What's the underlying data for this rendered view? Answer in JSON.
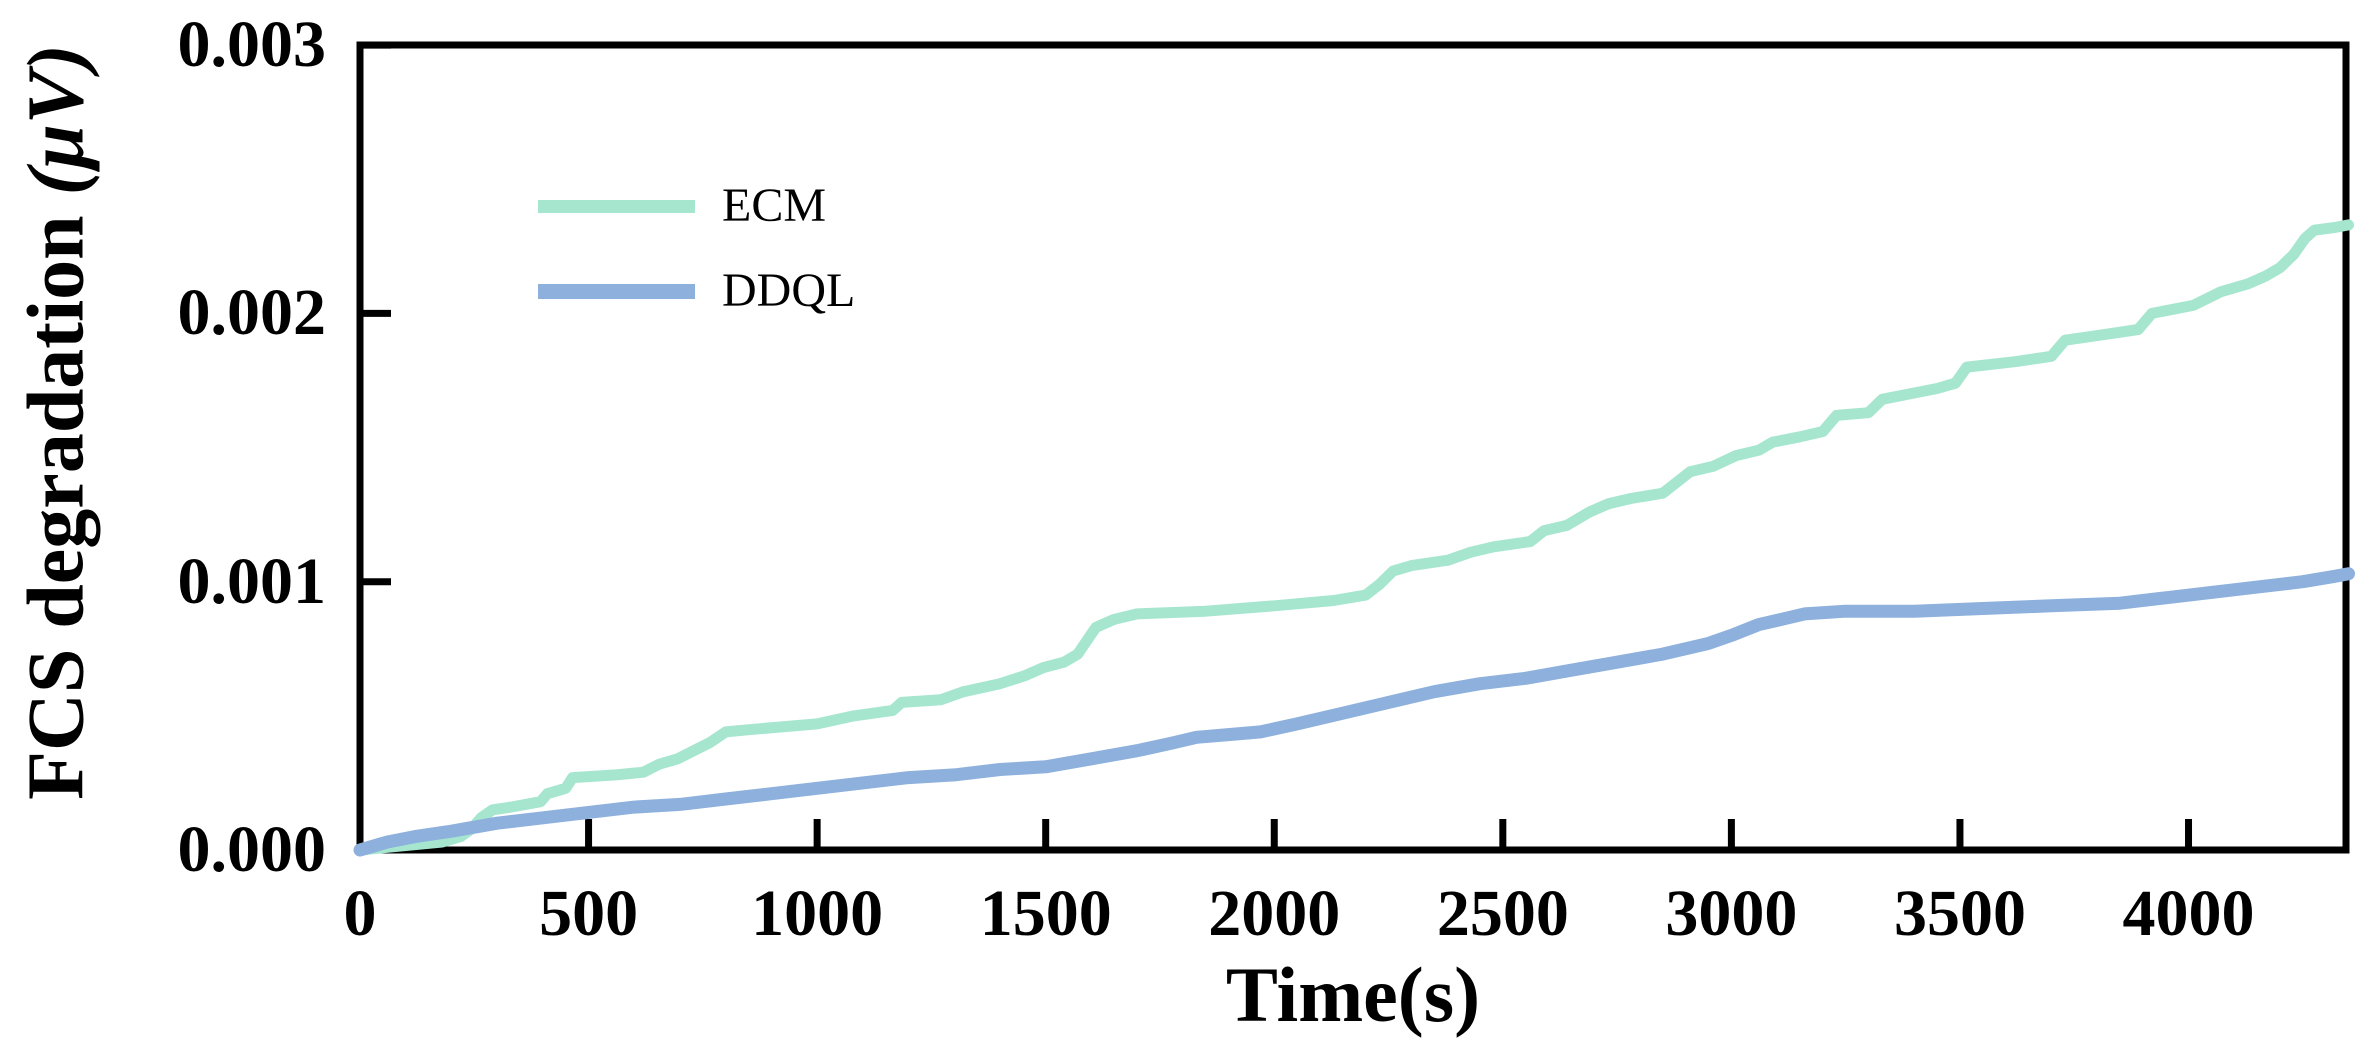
{
  "chart_data": {
    "type": "line",
    "title": "",
    "xlabel": "Time(s)",
    "ylabel_prefix": "FCS degradation ",
    "ylabel_unit": "(μV)",
    "xlim": [
      0,
      4350
    ],
    "ylim": [
      0,
      0.003
    ],
    "grid": false,
    "legend_position": "upper-left-inside",
    "axis_color": "#000000",
    "background_color": "#ffffff",
    "xticks": {
      "values": [
        0,
        500,
        1000,
        1500,
        2000,
        2500,
        3000,
        3500,
        4000
      ],
      "labels": [
        "0",
        "500",
        "1000",
        "1500",
        "2000",
        "2500",
        "3000",
        "3500",
        "4000"
      ]
    },
    "yticks": {
      "values": [
        0,
        0.001,
        0.002,
        0.003
      ],
      "labels": [
        "0.000",
        "0.001",
        "0.002",
        "0.003"
      ]
    },
    "series": [
      {
        "name": "ECM",
        "color": "#a6e6cf",
        "points": [
          [
            0,
            0
          ],
          [
            60,
            1e-05
          ],
          [
            120,
            2e-05
          ],
          [
            180,
            3e-05
          ],
          [
            220,
            5e-05
          ],
          [
            245,
            8e-05
          ],
          [
            265,
            0.00012
          ],
          [
            290,
            0.00015
          ],
          [
            330,
            0.00016
          ],
          [
            395,
            0.00018
          ],
          [
            410,
            0.00021
          ],
          [
            450,
            0.00023
          ],
          [
            465,
            0.00027
          ],
          [
            560,
            0.00028
          ],
          [
            620,
            0.00029
          ],
          [
            655,
            0.00032
          ],
          [
            695,
            0.00034
          ],
          [
            730,
            0.00037
          ],
          [
            765,
            0.0004
          ],
          [
            800,
            0.00044
          ],
          [
            860,
            0.00045
          ],
          [
            1000,
            0.00047
          ],
          [
            1080,
            0.0005
          ],
          [
            1165,
            0.00052
          ],
          [
            1185,
            0.00055
          ],
          [
            1270,
            0.00056
          ],
          [
            1320,
            0.00059
          ],
          [
            1400,
            0.00062
          ],
          [
            1455,
            0.00065
          ],
          [
            1495,
            0.00068
          ],
          [
            1540,
            0.0007
          ],
          [
            1570,
            0.00073
          ],
          [
            1590,
            0.00078
          ],
          [
            1610,
            0.00083
          ],
          [
            1650,
            0.00086
          ],
          [
            1700,
            0.00088
          ],
          [
            1850,
            0.00089
          ],
          [
            2000,
            0.00091
          ],
          [
            2130,
            0.00093
          ],
          [
            2200,
            0.00095
          ],
          [
            2230,
            0.00099
          ],
          [
            2260,
            0.00104
          ],
          [
            2300,
            0.00106
          ],
          [
            2380,
            0.00108
          ],
          [
            2430,
            0.00111
          ],
          [
            2480,
            0.00113
          ],
          [
            2560,
            0.00115
          ],
          [
            2590,
            0.00119
          ],
          [
            2640,
            0.00121
          ],
          [
            2690,
            0.00126
          ],
          [
            2730,
            0.00129
          ],
          [
            2780,
            0.00131
          ],
          [
            2850,
            0.00133
          ],
          [
            2880,
            0.00137
          ],
          [
            2910,
            0.00141
          ],
          [
            2960,
            0.00143
          ],
          [
            3010,
            0.00147
          ],
          [
            3060,
            0.00149
          ],
          [
            3090,
            0.00152
          ],
          [
            3150,
            0.00154
          ],
          [
            3200,
            0.00156
          ],
          [
            3230,
            0.00162
          ],
          [
            3300,
            0.00163
          ],
          [
            3330,
            0.00168
          ],
          [
            3390,
            0.0017
          ],
          [
            3450,
            0.00172
          ],
          [
            3490,
            0.00174
          ],
          [
            3515,
            0.0018
          ],
          [
            3620,
            0.00182
          ],
          [
            3700,
            0.00184
          ],
          [
            3730,
            0.0019
          ],
          [
            3810,
            0.00192
          ],
          [
            3890,
            0.00194
          ],
          [
            3920,
            0.002
          ],
          [
            4010,
            0.00203
          ],
          [
            4070,
            0.00208
          ],
          [
            4130,
            0.00211
          ],
          [
            4170,
            0.00214
          ],
          [
            4200,
            0.00217
          ],
          [
            4230,
            0.00222
          ],
          [
            4255,
            0.00228
          ],
          [
            4275,
            0.00231
          ],
          [
            4320,
            0.00232
          ],
          [
            4350,
            0.00233
          ]
        ]
      },
      {
        "name": "DDQL",
        "color": "#8db0dd",
        "points": [
          [
            0,
            0
          ],
          [
            60,
            3e-05
          ],
          [
            120,
            5e-05
          ],
          [
            200,
            7e-05
          ],
          [
            300,
            0.0001
          ],
          [
            400,
            0.00012
          ],
          [
            500,
            0.00014
          ],
          [
            600,
            0.00016
          ],
          [
            700,
            0.00017
          ],
          [
            800,
            0.00019
          ],
          [
            900,
            0.00021
          ],
          [
            1000,
            0.00023
          ],
          [
            1100,
            0.00025
          ],
          [
            1200,
            0.00027
          ],
          [
            1300,
            0.00028
          ],
          [
            1400,
            0.0003
          ],
          [
            1500,
            0.00031
          ],
          [
            1600,
            0.00034
          ],
          [
            1700,
            0.00037
          ],
          [
            1780,
            0.0004
          ],
          [
            1830,
            0.00042
          ],
          [
            1900,
            0.00043
          ],
          [
            1970,
            0.00044
          ],
          [
            2050,
            0.00047
          ],
          [
            2150,
            0.00051
          ],
          [
            2250,
            0.00055
          ],
          [
            2350,
            0.00059
          ],
          [
            2450,
            0.00062
          ],
          [
            2550,
            0.00064
          ],
          [
            2650,
            0.00067
          ],
          [
            2750,
            0.0007
          ],
          [
            2850,
            0.00073
          ],
          [
            2950,
            0.00077
          ],
          [
            3000,
            0.0008
          ],
          [
            3060,
            0.00084
          ],
          [
            3110,
            0.00086
          ],
          [
            3160,
            0.00088
          ],
          [
            3250,
            0.00089
          ],
          [
            3400,
            0.00089
          ],
          [
            3550,
            0.0009
          ],
          [
            3700,
            0.00091
          ],
          [
            3850,
            0.00092
          ],
          [
            3950,
            0.00094
          ],
          [
            4050,
            0.00096
          ],
          [
            4150,
            0.00098
          ],
          [
            4250,
            0.001
          ],
          [
            4320,
            0.00102
          ],
          [
            4350,
            0.00103
          ]
        ]
      }
    ]
  }
}
